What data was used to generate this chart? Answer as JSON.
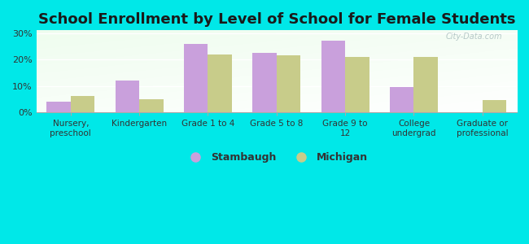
{
  "title": "School Enrollment by Level of School for Female Students",
  "categories": [
    "Nursery,\npreschool",
    "Kindergarten",
    "Grade 1 to 4",
    "Grade 5 to 8",
    "Grade 9 to\n12",
    "College\nundergrad",
    "Graduate or\nprofessional"
  ],
  "stambaugh_values": [
    4,
    12,
    26,
    22.5,
    27,
    9.5,
    0
  ],
  "michigan_values": [
    6,
    5,
    22,
    21.5,
    21,
    21,
    4.5
  ],
  "stambaugh_color": "#c9a0dc",
  "michigan_color": "#c8cc8a",
  "background_color": "#00e8e8",
  "yticks": [
    0,
    10,
    20,
    30
  ],
  "ytick_labels": [
    "0%",
    "10%",
    "20%",
    "30%"
  ],
  "ylim": [
    0,
    31
  ],
  "legend_labels": [
    "Stambaugh",
    "Michigan"
  ],
  "title_fontsize": 13,
  "watermark": "City-Data.com"
}
